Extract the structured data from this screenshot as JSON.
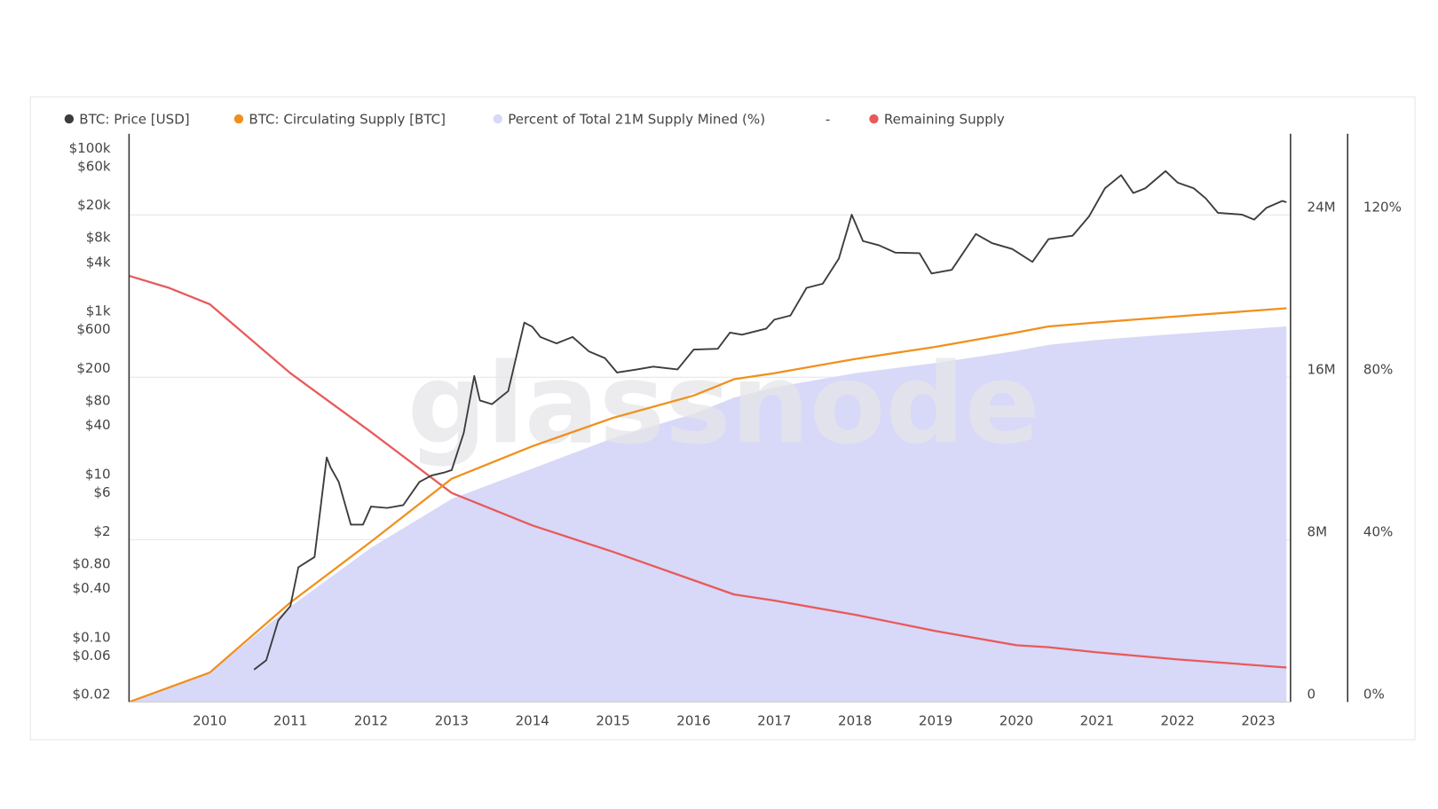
{
  "chart_data": {
    "type": "line",
    "watermark": "glassnode",
    "legend_separator": "-",
    "legend": "top-left",
    "grid": true,
    "xlim": [
      2009,
      2023.4
    ],
    "xticks": [
      2010,
      2011,
      2012,
      2013,
      2014,
      2015,
      2016,
      2017,
      2018,
      2019,
      2020,
      2021,
      2022,
      2023
    ],
    "yscale": "log",
    "ylim": [
      0.02,
      187000
    ],
    "yticks": [
      {
        "value": 0.02,
        "label": "$0.02"
      },
      {
        "value": 0.06,
        "label": "$0.06"
      },
      {
        "value": 0.1,
        "label": "$0.10"
      },
      {
        "value": 0.4,
        "label": "$0.40"
      },
      {
        "value": 0.8,
        "label": "$0.80"
      },
      {
        "value": 2,
        "label": "$2"
      },
      {
        "value": 6,
        "label": "$6"
      },
      {
        "value": 10,
        "label": "$10"
      },
      {
        "value": 40,
        "label": "$40"
      },
      {
        "value": 80,
        "label": "$80"
      },
      {
        "value": 200,
        "label": "$200"
      },
      {
        "value": 600,
        "label": "$600"
      },
      {
        "value": 1000,
        "label": "$1k"
      },
      {
        "value": 4000,
        "label": "$4k"
      },
      {
        "value": 8000,
        "label": "$8k"
      },
      {
        "value": 20000,
        "label": "$20k"
      },
      {
        "value": 60000,
        "label": "$60k"
      },
      {
        "value": 100000,
        "label": "$100k"
      }
    ],
    "y2lim": [
      0,
      28000000
    ],
    "y2ticks": [
      0,
      {
        "value": 8000000,
        "label": "8M"
      },
      {
        "value": 16000000,
        "label": "16M"
      },
      {
        "value": 24000000,
        "label": "24M"
      }
    ],
    "y3lim": [
      0,
      140
    ],
    "y3ticks": [
      {
        "value": 0,
        "label": "0%"
      },
      {
        "value": 40,
        "label": "40%"
      },
      {
        "value": 80,
        "label": "80%"
      },
      {
        "value": 120,
        "label": "120%"
      }
    ],
    "series": [
      {
        "name": "BTC: Price [USD]",
        "color": "#3c3c3c",
        "style": "line",
        "x": [
          2010.55,
          2010.7,
          2010.85,
          2011.0,
          2011.1,
          2011.3,
          2011.45,
          2011.5,
          2011.6,
          2011.75,
          2011.9,
          2012.0,
          2012.2,
          2012.4,
          2012.6,
          2012.75,
          2012.9,
          2013.0,
          2013.15,
          2013.28,
          2013.35,
          2013.5,
          2013.7,
          2013.9,
          2014.0,
          2014.1,
          2014.3,
          2014.5,
          2014.7,
          2014.9,
          2015.05,
          2015.3,
          2015.5,
          2015.8,
          2016.0,
          2016.3,
          2016.45,
          2016.6,
          2016.9,
          2017.0,
          2017.2,
          2017.4,
          2017.6,
          2017.8,
          2017.96,
          2018.1,
          2018.3,
          2018.5,
          2018.8,
          2018.95,
          2019.2,
          2019.5,
          2019.7,
          2019.95,
          2020.2,
          2020.4,
          2020.7,
          2020.9,
          2021.1,
          2021.3,
          2021.45,
          2021.6,
          2021.85,
          2022.0,
          2022.2,
          2022.35,
          2022.5,
          2022.8,
          2022.95,
          2023.1,
          2023.3,
          2023.35
        ],
        "values": [
          0.05,
          0.065,
          0.2,
          0.3,
          0.9,
          1.2,
          20,
          15,
          10,
          3,
          3,
          5,
          4.8,
          5.2,
          10,
          12,
          13,
          14,
          40,
          200,
          100,
          90,
          130,
          900,
          800,
          600,
          500,
          600,
          400,
          330,
          220,
          240,
          260,
          240,
          420,
          430,
          680,
          640,
          760,
          980,
          1100,
          2400,
          2700,
          5500,
          19000,
          9000,
          8000,
          6500,
          6400,
          3600,
          4000,
          11000,
          8500,
          7200,
          5000,
          9500,
          10500,
          18000,
          40000,
          58000,
          35000,
          40000,
          65000,
          47000,
          40000,
          30000,
          20000,
          19000,
          16500,
          23000,
          28000,
          27000
        ]
      },
      {
        "name": "BTC: Circulating Supply [BTC]",
        "color": "#f0901c",
        "style": "line",
        "axis": "y2",
        "x": [
          2009.0,
          2010.0,
          2011.0,
          2012.0,
          2013.0,
          2014.0,
          2015.0,
          2016.0,
          2016.5,
          2017.0,
          2018.0,
          2019.0,
          2020.0,
          2020.4,
          2021.0,
          2022.0,
          2023.35
        ],
        "values": [
          0,
          1450000,
          4900000,
          7900000,
          11000000,
          12600000,
          14000000,
          15100000,
          15900000,
          16200000,
          16900000,
          17500000,
          18200000,
          18500000,
          18700000,
          19000000,
          19400000
        ]
      },
      {
        "name": "Percent of Total 21M Supply Mined (%)",
        "color": "#d8d8f8",
        "style": "area",
        "axis": "y3",
        "x": [
          2009.0,
          2010.0,
          2011.0,
          2012.0,
          2013.0,
          2014.0,
          2015.0,
          2016.0,
          2016.5,
          2017.0,
          2018.0,
          2019.0,
          2020.0,
          2020.4,
          2021.0,
          2022.0,
          2023.35
        ],
        "values": [
          0,
          7.2,
          23.5,
          38,
          50,
          57.5,
          65,
          71,
          75,
          77.5,
          81,
          83.5,
          86.5,
          88,
          89.2,
          90.7,
          92.5
        ]
      },
      {
        "name": "Remaining Supply",
        "color": "#e85a5a",
        "style": "line",
        "axis": "y2",
        "x": [
          2009.0,
          2009.5,
          2010.0,
          2011.0,
          2012.0,
          2013.0,
          2014.0,
          2015.0,
          2016.0,
          2016.5,
          2017.0,
          2018.0,
          2019.0,
          2020.0,
          2020.4,
          2021.0,
          2022.0,
          2023.35
        ],
        "values": [
          21000000,
          20400000,
          19600000,
          16200000,
          13300000,
          10300000,
          8700000,
          7400000,
          6000000,
          5300000,
          5000000,
          4300000,
          3500000,
          2800000,
          2700000,
          2450000,
          2100000,
          1700000
        ]
      }
    ]
  }
}
